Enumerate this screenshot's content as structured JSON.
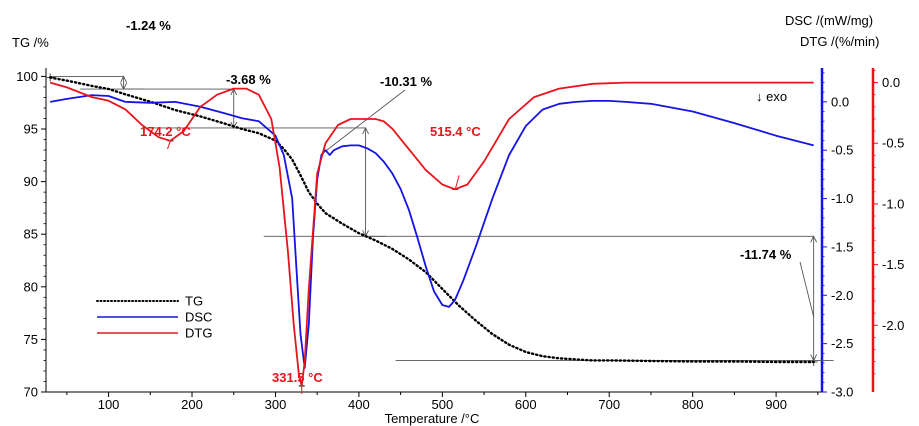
{
  "chart_data": {
    "type": "line",
    "xlabel": "Temperature /°C",
    "xlim": [
      25,
      955
    ],
    "xticks": [
      100,
      200,
      300,
      400,
      500,
      600,
      700,
      800,
      900
    ],
    "axes": {
      "tg": {
        "label": "TG /%",
        "ylim": [
          70,
          100.8
        ],
        "ticks": [
          70,
          75,
          80,
          85,
          90,
          95,
          100
        ],
        "color": "#000000"
      },
      "dsc": {
        "label": "DSC /(mW/mg)",
        "ylim": [
          -3.0,
          0.35
        ],
        "ticks": [
          -3.0,
          -2.5,
          -2.0,
          -1.5,
          -1.0,
          -0.5,
          0.0
        ],
        "color": "#1414e6"
      },
      "dtg": {
        "label": "DTG /(%/min)",
        "ylim": [
          -2.55,
          0.12
        ],
        "ticks": [
          -2.0,
          -1.5,
          -1.0,
          -0.5,
          0.0
        ],
        "color": "#e8141b"
      }
    },
    "series": [
      {
        "name": "TG",
        "axis": "tg",
        "color": "#000000",
        "x": [
          30,
          50,
          80,
          100,
          120,
          150,
          180,
          210,
          240,
          260,
          280,
          300,
          310,
          320,
          330,
          340,
          350,
          360,
          380,
          400,
          420,
          440,
          460,
          480,
          500,
          520,
          540,
          560,
          580,
          600,
          620,
          640,
          660,
          680,
          700,
          750,
          800,
          850,
          900,
          945
        ],
        "y": [
          99.9,
          99.6,
          99.1,
          98.8,
          98.3,
          97.6,
          96.8,
          96.2,
          95.5,
          95.0,
          94.6,
          93.9,
          93.1,
          92.1,
          90.6,
          89.0,
          87.9,
          87.0,
          86.0,
          85.1,
          84.4,
          83.6,
          82.6,
          81.4,
          79.8,
          78.2,
          76.8,
          75.5,
          74.5,
          73.8,
          73.4,
          73.2,
          73.1,
          73.0,
          73.0,
          72.95,
          72.9,
          72.9,
          72.85,
          72.85
        ]
      },
      {
        "name": "DSC",
        "axis": "dsc",
        "color": "#1414e6",
        "x": [
          30,
          50,
          80,
          100,
          120,
          150,
          180,
          210,
          240,
          260,
          280,
          300,
          310,
          320,
          325,
          330,
          335,
          340,
          345,
          350,
          355,
          360,
          365,
          370,
          380,
          390,
          400,
          410,
          420,
          430,
          440,
          450,
          460,
          470,
          480,
          490,
          500,
          508,
          515,
          525,
          540,
          560,
          580,
          600,
          620,
          640,
          660,
          680,
          700,
          720,
          750,
          800,
          850,
          900,
          945
        ],
        "y": [
          0.0,
          0.03,
          0.07,
          0.06,
          0.0,
          -0.01,
          0.0,
          -0.05,
          -0.12,
          -0.17,
          -0.2,
          -0.35,
          -0.55,
          -1.0,
          -1.7,
          -2.4,
          -2.75,
          -2.3,
          -1.4,
          -0.8,
          -0.55,
          -0.5,
          -0.55,
          -0.5,
          -0.46,
          -0.45,
          -0.45,
          -0.48,
          -0.53,
          -0.62,
          -0.74,
          -0.9,
          -1.12,
          -1.4,
          -1.7,
          -1.96,
          -2.1,
          -2.12,
          -2.05,
          -1.85,
          -1.5,
          -1.0,
          -0.55,
          -0.25,
          -0.08,
          -0.02,
          0.0,
          0.01,
          0.01,
          0.0,
          -0.02,
          -0.1,
          -0.22,
          -0.35,
          -0.45
        ]
      },
      {
        "name": "DTG",
        "axis": "dtg",
        "color": "#e8141b",
        "x": [
          30,
          50,
          80,
          100,
          120,
          140,
          160,
          174,
          190,
          210,
          230,
          250,
          265,
          280,
          295,
          305,
          315,
          322,
          328,
          331.5,
          335,
          340,
          350,
          360,
          375,
          390,
          400,
          410,
          420,
          430,
          440,
          460,
          480,
          500,
          515,
          530,
          550,
          580,
          610,
          640,
          680,
          720,
          780,
          850,
          900,
          945
        ],
        "y": [
          0.0,
          -0.04,
          -0.12,
          -0.15,
          -0.22,
          -0.35,
          -0.45,
          -0.48,
          -0.4,
          -0.2,
          -0.1,
          -0.05,
          -0.05,
          -0.1,
          -0.3,
          -0.7,
          -1.4,
          -2.0,
          -2.4,
          -2.5,
          -2.3,
          -1.7,
          -0.75,
          -0.5,
          -0.35,
          -0.3,
          -0.3,
          -0.3,
          -0.3,
          -0.32,
          -0.38,
          -0.55,
          -0.72,
          -0.84,
          -0.88,
          -0.84,
          -0.65,
          -0.3,
          -0.12,
          -0.05,
          -0.01,
          0.0,
          0.0,
          0.0,
          0.0,
          0.0
        ]
      }
    ],
    "legend": {
      "placement": "lower-left",
      "entries": [
        {
          "name": "TG",
          "color": "#000000",
          "style": "dotted"
        },
        {
          "name": "DSC",
          "color": "#1414e6",
          "style": "solid"
        },
        {
          "name": "DTG",
          "color": "#e8141b",
          "style": "solid"
        }
      ]
    },
    "annotations": {
      "mass_losses": [
        {
          "text": "-1.24 %",
          "x0": 30,
          "x1": 118,
          "y_top": 100.0,
          "y_bottom": 98.8
        },
        {
          "text": "-3.68 %",
          "x0": 118,
          "x1": 250,
          "y_top": 98.8,
          "y_bottom": 95.1
        },
        {
          "text": "-10.31 %",
          "x0": 250,
          "x1": 408,
          "y_top": 95.1,
          "y_bottom": 84.8
        },
        {
          "text": "-11.74 %",
          "x0": 408,
          "x1": 945,
          "y_top": 84.8,
          "y_bottom": 73.0
        }
      ],
      "peaks": [
        {
          "text": "174.2 °C",
          "x": 174.2,
          "y": -0.48,
          "axis": "dtg"
        },
        {
          "text": "331.5 °C",
          "x": 331.5,
          "y": -2.5,
          "axis": "dtg"
        },
        {
          "text": "515.4 °C",
          "x": 515.4,
          "y": -0.88,
          "axis": "dtg"
        }
      ],
      "exo": "↓ exo"
    }
  }
}
